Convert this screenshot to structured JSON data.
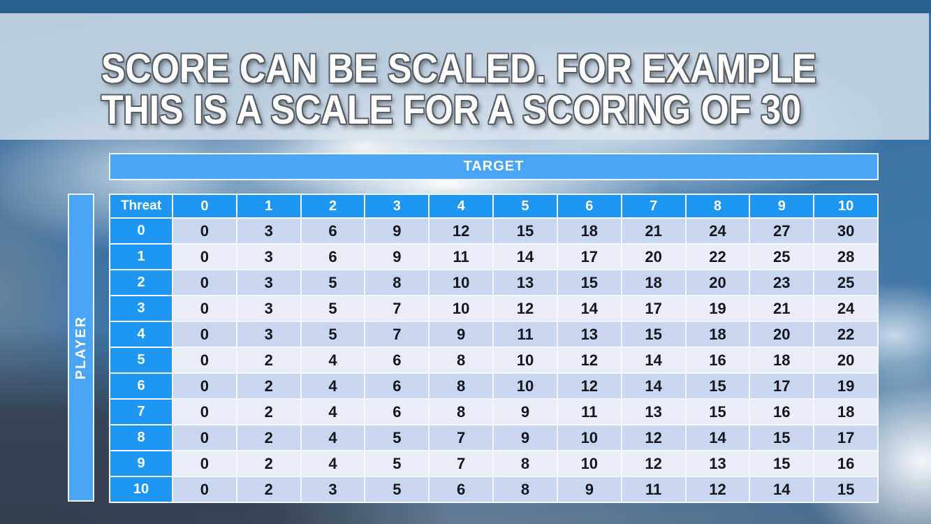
{
  "title": {
    "line1": "SCORE CAN BE SCALED. FOR EXAMPLE",
    "line2": "THIS IS A SCALE FOR A SCORING OF 30"
  },
  "table": {
    "target_label": "TARGET",
    "player_label": "PLAYER",
    "corner_label": "Threat",
    "column_headers": [
      "0",
      "1",
      "2",
      "3",
      "4",
      "5",
      "6",
      "7",
      "8",
      "9",
      "10"
    ],
    "row_headers": [
      "0",
      "1",
      "2",
      "3",
      "4",
      "5",
      "6",
      "7",
      "8",
      "9",
      "10"
    ],
    "rows": [
      [
        0,
        3,
        6,
        9,
        12,
        15,
        18,
        21,
        24,
        27,
        30
      ],
      [
        0,
        3,
        6,
        9,
        11,
        14,
        17,
        20,
        22,
        25,
        28
      ],
      [
        0,
        3,
        5,
        8,
        10,
        13,
        15,
        18,
        20,
        23,
        25
      ],
      [
        0,
        3,
        5,
        7,
        10,
        12,
        14,
        17,
        19,
        21,
        24
      ],
      [
        0,
        3,
        5,
        7,
        9,
        11,
        13,
        15,
        18,
        20,
        22
      ],
      [
        0,
        2,
        4,
        6,
        8,
        10,
        12,
        14,
        16,
        18,
        20
      ],
      [
        0,
        2,
        4,
        6,
        8,
        10,
        12,
        14,
        15,
        17,
        19
      ],
      [
        0,
        2,
        4,
        6,
        8,
        9,
        11,
        13,
        15,
        16,
        18
      ],
      [
        0,
        2,
        4,
        5,
        7,
        9,
        10,
        12,
        14,
        15,
        17
      ],
      [
        0,
        2,
        4,
        5,
        7,
        8,
        10,
        12,
        13,
        15,
        16
      ],
      [
        0,
        2,
        3,
        5,
        6,
        8,
        9,
        11,
        12,
        14,
        15
      ]
    ]
  },
  "colors": {
    "header_blue": "#1d97f2",
    "band_blue": "#4aa5f6",
    "row_dark": "#c9d6f0",
    "row_light": "#e8edf9",
    "cell_text": "#16161f",
    "top_strip": "#2e608d",
    "table_border": "#f3f7fd"
  }
}
